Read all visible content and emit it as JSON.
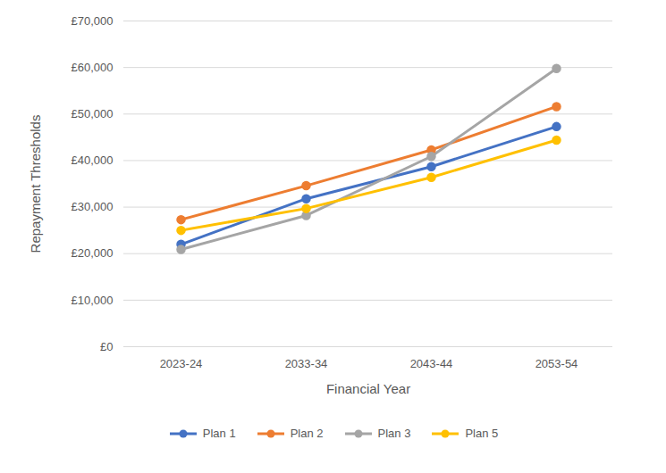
{
  "chart_data": {
    "type": "line",
    "x_label": "Financial Year",
    "y_label": "Repayment Thresholds",
    "categories": [
      "2023-24",
      "2033-34",
      "2043-44",
      "2053-54"
    ],
    "series": [
      {
        "name": "Plan 1",
        "color": "#4472C4",
        "values": [
          22000,
          31800,
          38700,
          47300
        ]
      },
      {
        "name": "Plan 2",
        "color": "#ED7D31",
        "values": [
          27300,
          34600,
          42300,
          51600
        ]
      },
      {
        "name": "Plan 3",
        "color": "#A5A5A5",
        "values": [
          20900,
          28200,
          40900,
          59800
        ]
      },
      {
        "name": "Plan 5",
        "color": "#FFC000",
        "values": [
          25000,
          29700,
          36400,
          44400
        ]
      }
    ],
    "ylim": [
      0,
      70000
    ],
    "yticks": [
      {
        "value": 0,
        "label": "£0"
      },
      {
        "value": 10000,
        "label": "£10,000"
      },
      {
        "value": 20000,
        "label": "£20,000"
      },
      {
        "value": 30000,
        "label": "£30,000"
      },
      {
        "value": 40000,
        "label": "£40,000"
      },
      {
        "value": 50000,
        "label": "£50,000"
      },
      {
        "value": 60000,
        "label": "£60,000"
      },
      {
        "value": 70000,
        "label": "£70,000"
      }
    ],
    "grid": true,
    "marker": "circle",
    "legend": "bottom"
  }
}
